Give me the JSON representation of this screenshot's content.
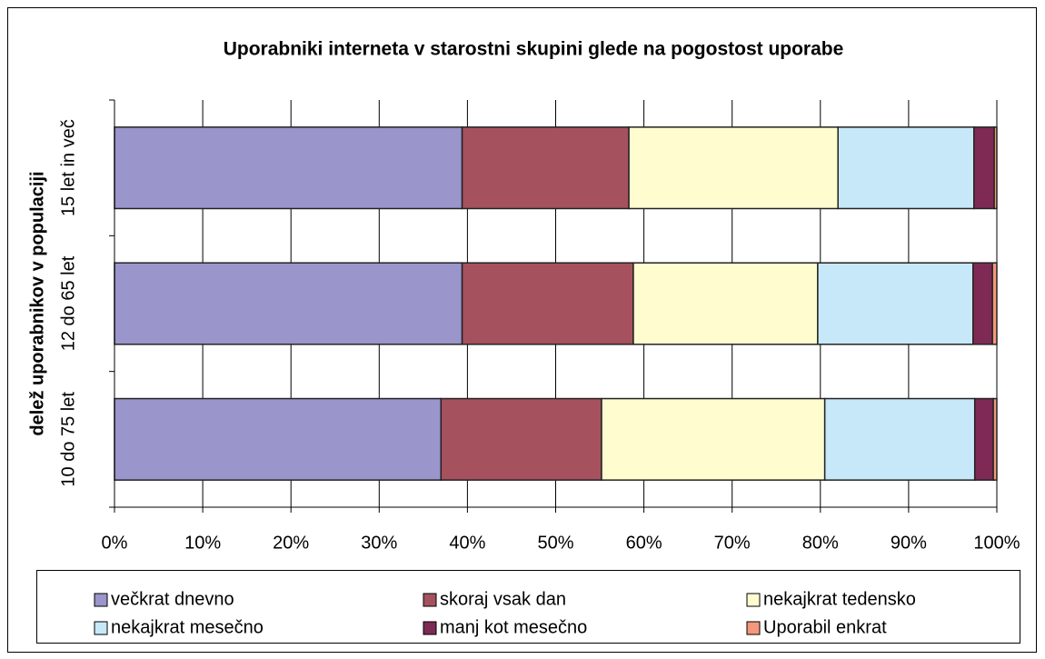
{
  "chart_data": {
    "type": "stacked_barh",
    "title": "Uporabniki interneta v starostni skupini glede na pogostost uporabe",
    "ylabel": "delež uporabnikov v populaciji",
    "categories": [
      "10 do 75 let",
      "12 do 65 let",
      "15 let in več"
    ],
    "series": [
      {
        "name": "večkrat dnevno",
        "color": "#9a95cb",
        "values": [
          37.0,
          39.4,
          39.4
        ]
      },
      {
        "name": "skoraj vsak dan",
        "color": "#a5525e",
        "values": [
          18.2,
          19.4,
          18.9
        ]
      },
      {
        "name": "nekajkrat tedensko",
        "color": "#fffdd0",
        "values": [
          25.3,
          20.9,
          23.7
        ]
      },
      {
        "name": "nekajkrat mesečno",
        "color": "#c7e8f8",
        "values": [
          17.0,
          17.6,
          15.4
        ]
      },
      {
        "name": "manj kot mesečno",
        "color": "#7e2a55",
        "values": [
          2.1,
          2.2,
          2.3
        ]
      },
      {
        "name": "Uporabil enkrat",
        "color": "#f4977a",
        "values": [
          0.4,
          0.5,
          0.3
        ]
      }
    ],
    "xlim": [
      0,
      100
    ],
    "xticks": [
      {
        "value": 0,
        "label": "0%"
      },
      {
        "value": 10,
        "label": "10%"
      },
      {
        "value": 20,
        "label": "20%"
      },
      {
        "value": 30,
        "label": "30%"
      },
      {
        "value": 40,
        "label": "40%"
      },
      {
        "value": 50,
        "label": "50%"
      },
      {
        "value": 60,
        "label": "60%"
      },
      {
        "value": 70,
        "label": "70%"
      },
      {
        "value": 80,
        "label": "80%"
      },
      {
        "value": 90,
        "label": "90%"
      },
      {
        "value": 100,
        "label": "100%"
      }
    ],
    "grid": true,
    "legend": "bottom"
  }
}
